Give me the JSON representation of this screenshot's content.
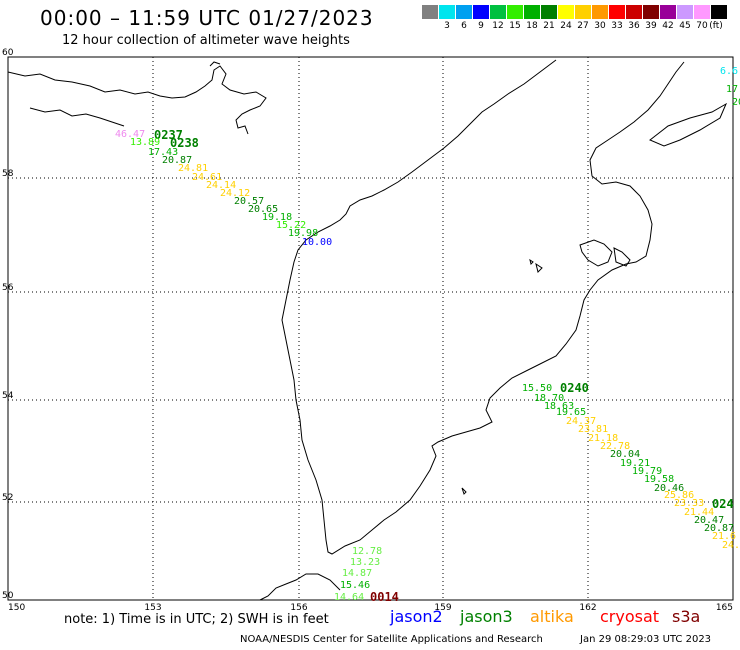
{
  "title": "00:00 – 11:59 UTC 01/27/2023",
  "subtitle": "12 hour collection of altimeter wave heights",
  "legend": {
    "unit": "(ft)",
    "bins": [
      {
        "color": "#808080",
        "label": ""
      },
      {
        "color": "#00e5ee",
        "label": "3"
      },
      {
        "color": "#00a0f0",
        "label": "6"
      },
      {
        "color": "#0000ff",
        "label": "9"
      },
      {
        "color": "#00c040",
        "label": "12"
      },
      {
        "color": "#33ee00",
        "label": "15"
      },
      {
        "color": "#00b000",
        "label": "18"
      },
      {
        "color": "#008000",
        "label": "21"
      },
      {
        "color": "#ffff00",
        "label": "24"
      },
      {
        "color": "#ffd000",
        "label": "27"
      },
      {
        "color": "#ff9900",
        "label": "30"
      },
      {
        "color": "#ff0000",
        "label": "33"
      },
      {
        "color": "#cc0000",
        "label": "36"
      },
      {
        "color": "#800000",
        "label": "39"
      },
      {
        "color": "#990099",
        "label": "42"
      },
      {
        "color": "#cc99ff",
        "label": "45"
      },
      {
        "color": "#ff99ff",
        "label": "70"
      },
      {
        "color": "#000000",
        "label": ""
      }
    ]
  },
  "axes": {
    "lon_labels": [
      "150",
      "153",
      "156",
      "159",
      "162",
      "165"
    ],
    "lat_labels": [
      "60",
      "58",
      "56",
      "54",
      "52",
      "50"
    ]
  },
  "passes": [
    {
      "label": "0237",
      "color": "#008000"
    },
    {
      "label": "0238",
      "color": "#008000"
    },
    {
      "label": "0240",
      "color": "#008000"
    },
    {
      "label": "024",
      "color": "#008000"
    },
    {
      "label": "0014",
      "color": "#800000"
    }
  ],
  "readings": [
    {
      "v": "46.47",
      "c": "#ee88ee"
    },
    {
      "v": "13.89",
      "c": "#33ee00"
    },
    {
      "v": "17.43",
      "c": "#00b000"
    },
    {
      "v": "20.87",
      "c": "#008000"
    },
    {
      "v": "24.81",
      "c": "#ffd000"
    },
    {
      "v": "24.61",
      "c": "#ffd000"
    },
    {
      "v": "24.14",
      "c": "#ffd000"
    },
    {
      "v": "24.12",
      "c": "#ffd000"
    },
    {
      "v": "20.57",
      "c": "#008000"
    },
    {
      "v": "20.65",
      "c": "#008000"
    },
    {
      "v": "19.18",
      "c": "#00b000"
    },
    {
      "v": "15.22",
      "c": "#33ee00"
    },
    {
      "v": "19.98",
      "c": "#00b000"
    },
    {
      "v": "10.00",
      "c": "#0000ff"
    },
    {
      "v": "15.50",
      "c": "#00b000"
    },
    {
      "v": "18.70",
      "c": "#00b000"
    },
    {
      "v": "18.63",
      "c": "#00b000"
    },
    {
      "v": "19.65",
      "c": "#00b000"
    },
    {
      "v": "24.37",
      "c": "#ffd000"
    },
    {
      "v": "23.81",
      "c": "#ffd000"
    },
    {
      "v": "21.18",
      "c": "#ffd000"
    },
    {
      "v": "22.78",
      "c": "#ffd000"
    },
    {
      "v": "20.04",
      "c": "#008000"
    },
    {
      "v": "19.21",
      "c": "#00b000"
    },
    {
      "v": "19.79",
      "c": "#00b000"
    },
    {
      "v": "19.58",
      "c": "#00b000"
    },
    {
      "v": "20.46",
      "c": "#008000"
    },
    {
      "v": "25.86",
      "c": "#ffd000"
    },
    {
      "v": "23.33",
      "c": "#ffd000"
    },
    {
      "v": "21.44",
      "c": "#ffd000"
    },
    {
      "v": "20.47",
      "c": "#008000"
    },
    {
      "v": "20.87",
      "c": "#008000"
    },
    {
      "v": "21.6",
      "c": "#ffd000"
    },
    {
      "v": "24.",
      "c": "#ffd000"
    },
    {
      "v": "12.78",
      "c": "#66ee44"
    },
    {
      "v": "13.23",
      "c": "#66ee44"
    },
    {
      "v": "14.87",
      "c": "#66ee44"
    },
    {
      "v": "15.46",
      "c": "#00b000"
    },
    {
      "v": "14.64",
      "c": "#66ee44"
    },
    {
      "v": "6.6",
      "c": "#00e5ee"
    },
    {
      "v": "17.",
      "c": "#00b000"
    },
    {
      "v": "20",
      "c": "#00b000"
    }
  ],
  "note": "note: 1) Time is in UTC; 2) SWH is in feet",
  "satellites": [
    {
      "name": "jason2",
      "color": "#0000ff"
    },
    {
      "name": "jason3",
      "color": "#008000"
    },
    {
      "name": "altika",
      "color": "#ff9900"
    },
    {
      "name": "cryosat",
      "color": "#ff0000"
    },
    {
      "name": "s3a",
      "color": "#800000"
    }
  ],
  "credit": "NOAA/NESDIS Center for Satellite Applications and Research",
  "timestamp": "Jan 29 08:29:03 UTC 2023"
}
